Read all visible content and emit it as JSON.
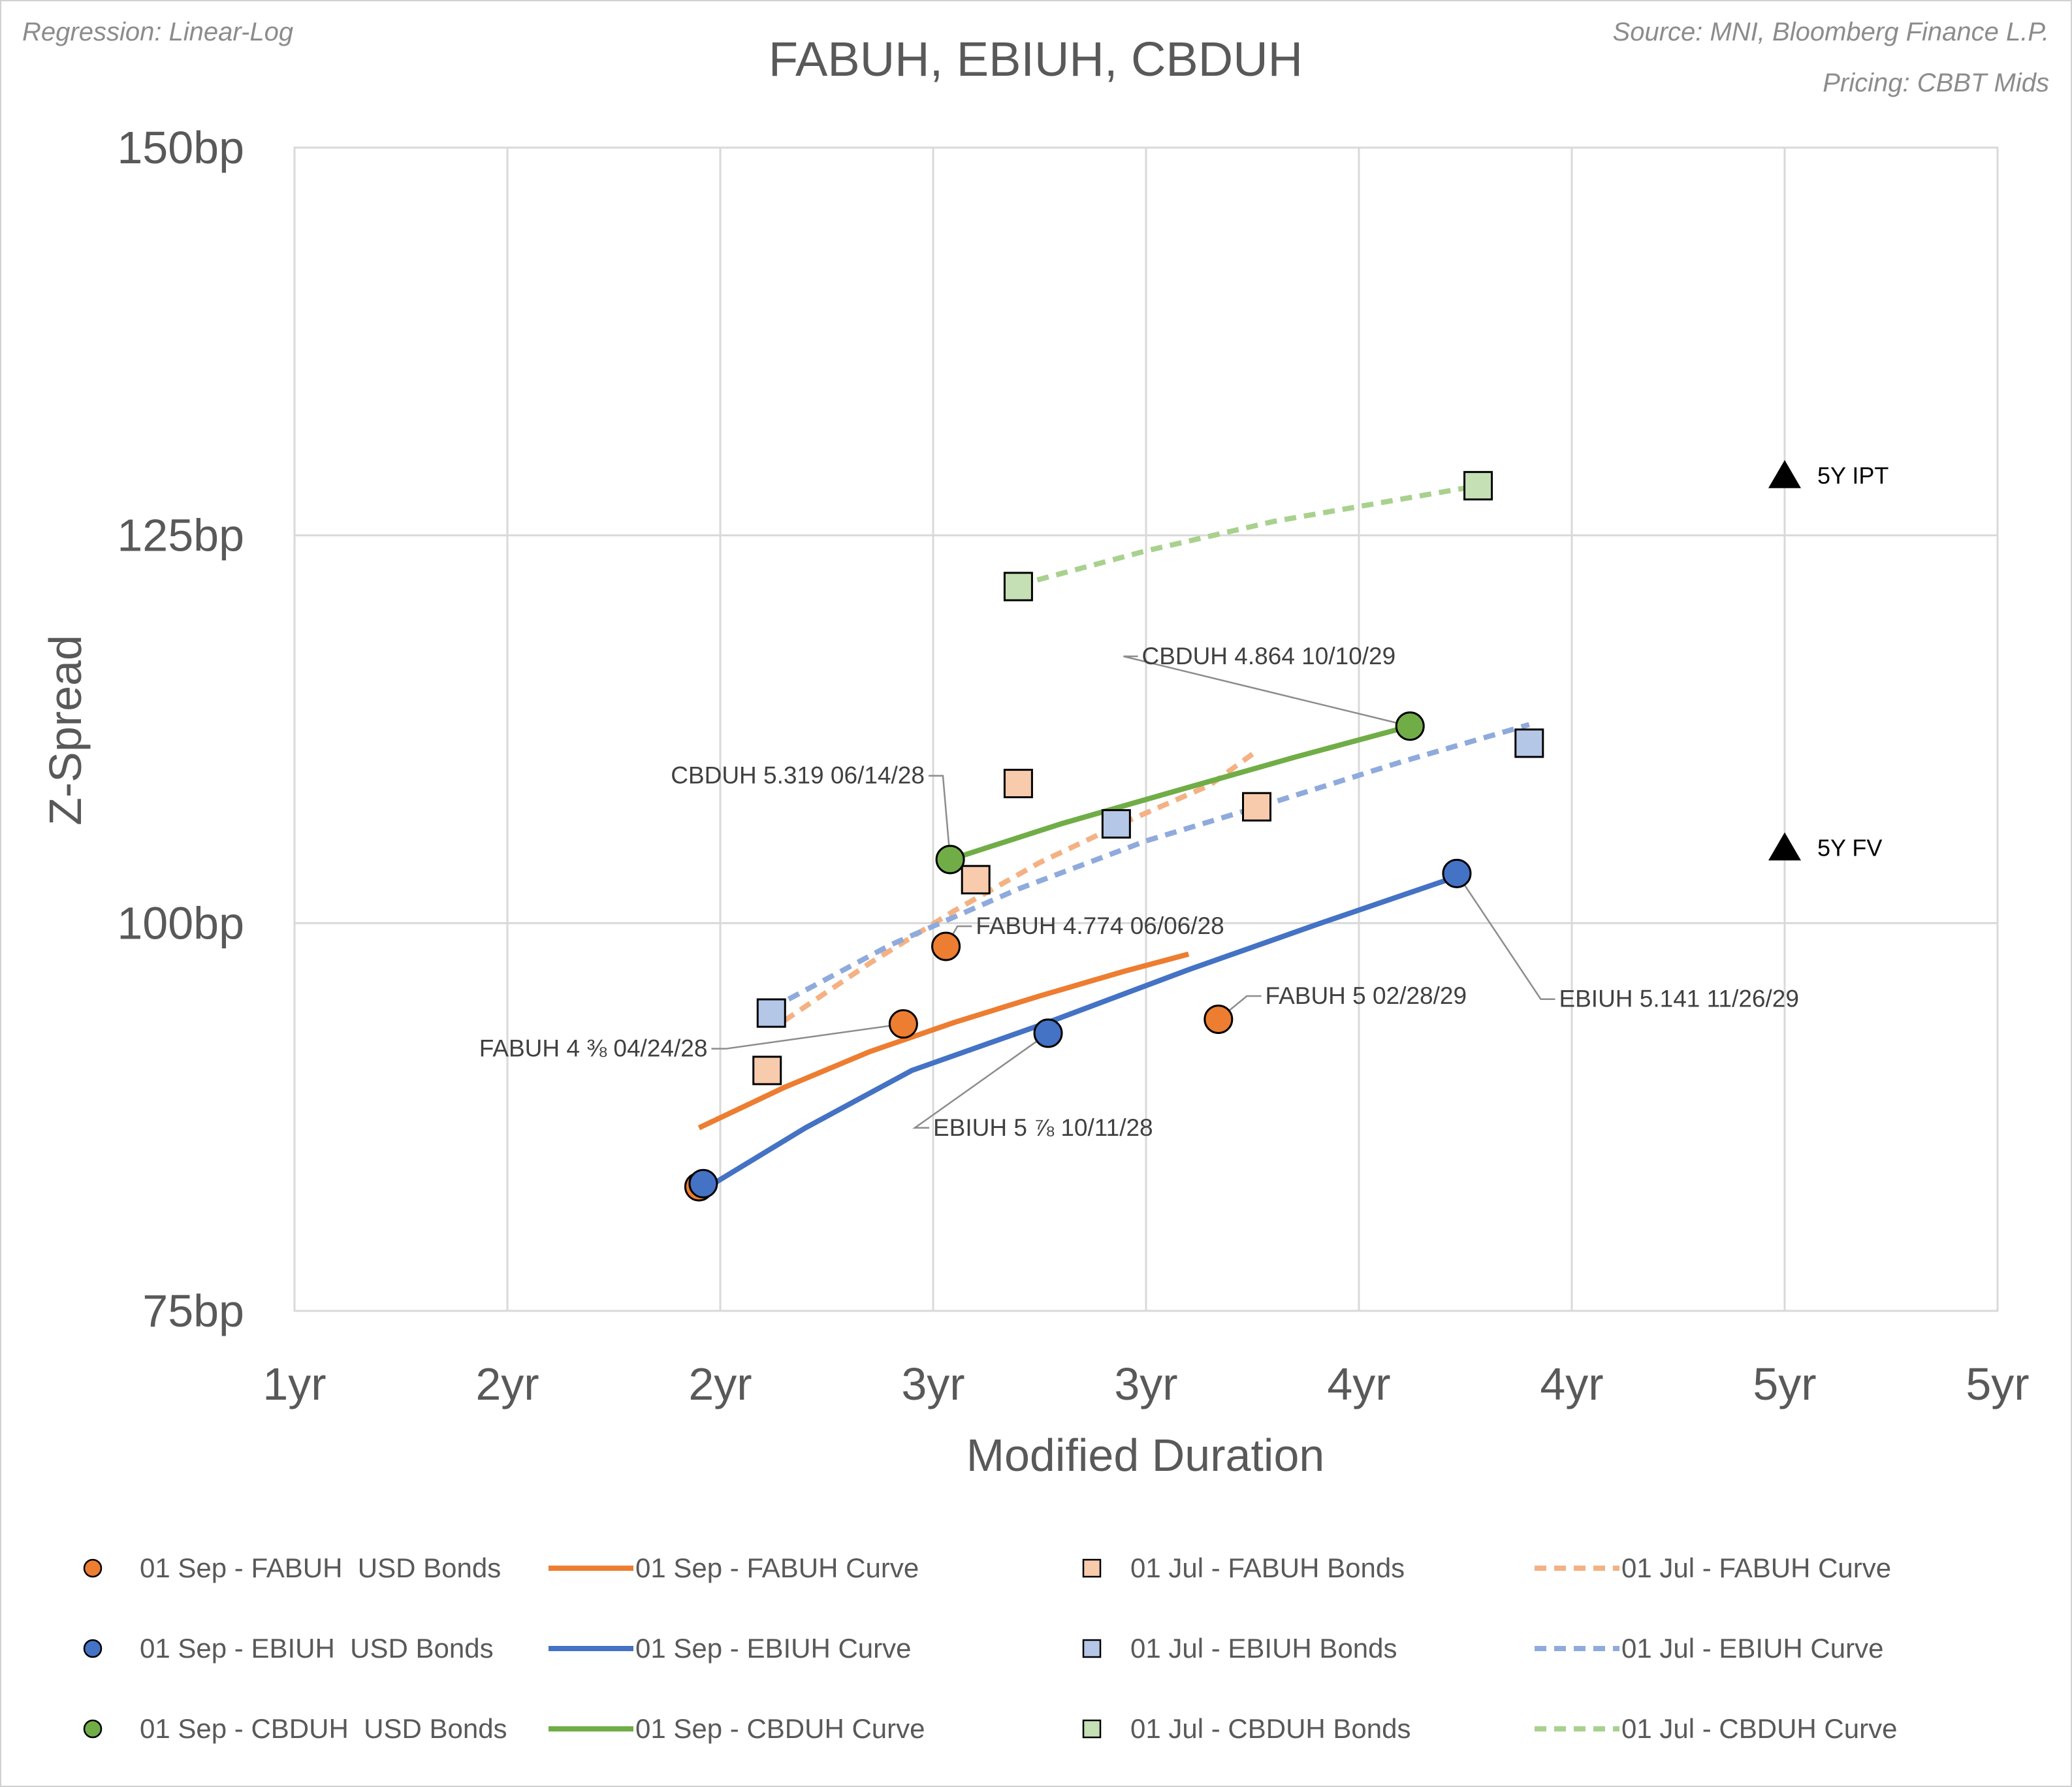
{
  "header": {
    "title": "FABUH, EBIUH, CBDUH",
    "note_left": "Regression: Linear-Log",
    "source": "Source: MNI, Bloomberg Finance L.P.",
    "pricing": "Pricing: CBBT Mids"
  },
  "chart_data": {
    "type": "scatter",
    "title": "FABUH, EBIUH, CBDUH",
    "xlabel": "Modified Duration",
    "ylabel": "Z-Spread",
    "xlim": [
      1.0,
      5.0
    ],
    "ylim": [
      75,
      150
    ],
    "x_ticks": [
      {
        "value": 1.0,
        "label": "1yr"
      },
      {
        "value": 1.5,
        "label": "2yr"
      },
      {
        "value": 2.0,
        "label": "2yr"
      },
      {
        "value": 2.5,
        "label": "3yr"
      },
      {
        "value": 3.0,
        "label": "3yr"
      },
      {
        "value": 3.5,
        "label": "4yr"
      },
      {
        "value": 4.0,
        "label": "4yr"
      },
      {
        "value": 4.5,
        "label": "5yr"
      },
      {
        "value": 5.0,
        "label": "5yr"
      }
    ],
    "y_ticks": [
      {
        "value": 75,
        "label": "75bp"
      },
      {
        "value": 100,
        "label": "100bp"
      },
      {
        "value": 125,
        "label": "125bp"
      },
      {
        "value": 150,
        "label": "150bp"
      }
    ],
    "grid": true,
    "legend_position": "bottom",
    "colors": {
      "fabuh": "#ED7D31",
      "ebiuh": "#4472C4",
      "cbduh": "#70AD47",
      "fabuh_light": "#F8CBAD",
      "ebiuh_light": "#B4C7E7",
      "cbduh_light": "#C5E0B4",
      "fabuh_dash": "#F4B183",
      "ebiuh_dash": "#8FAADC",
      "cbduh_dash": "#A9D18E",
      "marker": "#000000"
    },
    "series": [
      {
        "key": "s_fab",
        "name": "01 Sep - FABUH  USD Bonds",
        "kind": "scatter",
        "marker": "circle",
        "color": "fabuh",
        "points": [
          [
            1.95,
            83.0
          ],
          [
            2.43,
            93.5
          ],
          [
            2.53,
            98.5
          ],
          [
            3.17,
            93.8
          ]
        ]
      },
      {
        "key": "c_fab",
        "name": "01 Sep - FABUH Curve",
        "kind": "line",
        "dash": false,
        "color": "fabuh",
        "points": [
          [
            1.95,
            86.8
          ],
          [
            2.15,
            89.4
          ],
          [
            2.35,
            91.7
          ],
          [
            2.55,
            93.6
          ],
          [
            2.75,
            95.3
          ],
          [
            2.95,
            96.9
          ],
          [
            3.1,
            98.0
          ]
        ]
      },
      {
        "key": "l_fab",
        "name": "01 Jul - FABUH Bonds",
        "kind": "scatter",
        "marker": "square",
        "color": "fabuh_light",
        "points": [
          [
            2.11,
            90.5
          ],
          [
            2.6,
            102.8
          ],
          [
            2.7,
            109.0
          ],
          [
            3.26,
            107.5
          ]
        ]
      },
      {
        "key": "d_fab",
        "name": "01 Jul - FABUH Curve",
        "kind": "line",
        "dash": true,
        "color": "fabuh_dash",
        "points": [
          [
            2.15,
            93.7
          ],
          [
            2.35,
            97.4
          ],
          [
            2.55,
            100.8
          ],
          [
            2.75,
            103.9
          ],
          [
            2.95,
            106.5
          ],
          [
            3.15,
            108.9
          ],
          [
            3.25,
            110.9
          ]
        ]
      },
      {
        "key": "s_ebi",
        "name": "01 Sep - EBIUH  USD Bonds",
        "kind": "scatter",
        "marker": "circle",
        "color": "ebiuh",
        "points": [
          [
            1.96,
            83.2
          ],
          [
            2.77,
            92.9
          ],
          [
            3.73,
            103.2
          ]
        ]
      },
      {
        "key": "c_ebi",
        "name": "01 Sep - EBIUH Curve",
        "kind": "line",
        "dash": false,
        "color": "ebiuh",
        "points": [
          [
            1.96,
            82.8
          ],
          [
            2.2,
            86.8
          ],
          [
            2.45,
            90.5
          ],
          [
            2.77,
            93.6
          ],
          [
            3.1,
            97.0
          ],
          [
            3.4,
            99.9
          ],
          [
            3.73,
            103.0
          ]
        ]
      },
      {
        "key": "l_ebi",
        "name": "01 Jul - EBIUH Bonds",
        "kind": "scatter",
        "marker": "square",
        "color": "ebiuh_light",
        "points": [
          [
            2.12,
            94.2
          ],
          [
            2.93,
            106.4
          ],
          [
            3.9,
            111.6
          ]
        ]
      },
      {
        "key": "d_ebi",
        "name": "01 Jul - EBIUH Curve",
        "kind": "line",
        "dash": true,
        "color": "ebiuh_dash",
        "points": [
          [
            2.12,
            94.5
          ],
          [
            2.4,
            98.6
          ],
          [
            2.7,
            102.2
          ],
          [
            3.0,
            105.3
          ],
          [
            3.3,
            107.8
          ],
          [
            3.6,
            110.4
          ],
          [
            3.9,
            112.8
          ]
        ]
      },
      {
        "key": "s_cbd",
        "name": "01 Sep - CBDUH  USD Bonds",
        "kind": "scatter",
        "marker": "circle",
        "color": "cbduh",
        "points": [
          [
            2.54,
            104.1
          ],
          [
            3.62,
            112.7
          ]
        ]
      },
      {
        "key": "c_cbd",
        "name": "01 Sep - CBDUH Curve",
        "kind": "line",
        "dash": false,
        "color": "cbduh",
        "points": [
          [
            2.54,
            104.1
          ],
          [
            2.8,
            106.4
          ],
          [
            3.08,
            108.6
          ],
          [
            3.35,
            110.7
          ],
          [
            3.62,
            112.7
          ]
        ]
      },
      {
        "key": "l_cbd",
        "name": "01 Jul - CBDUH Bonds",
        "kind": "scatter",
        "marker": "square",
        "color": "cbduh_light",
        "points": [
          [
            2.7,
            121.7
          ],
          [
            3.78,
            128.2
          ]
        ]
      },
      {
        "key": "d_cbd",
        "name": "01 Jul - CBDUH Curve",
        "kind": "line",
        "dash": true,
        "color": "cbduh_dash",
        "points": [
          [
            2.7,
            121.8
          ],
          [
            3.0,
            124.0
          ],
          [
            3.3,
            125.9
          ],
          [
            3.55,
            127.1
          ],
          [
            3.78,
            128.2
          ]
        ]
      }
    ],
    "markers": [
      {
        "label": "5Y IPT",
        "x": 4.5,
        "y": 128.8
      },
      {
        "label": "5Y FV",
        "x": 4.5,
        "y": 104.8
      }
    ],
    "annotations": [
      {
        "text": "CBDUH 4.864 10/10/29",
        "x": 3.62,
        "y": 112.7,
        "label_x": 2.99,
        "label_y": 117.2,
        "anchor": "start"
      },
      {
        "text": "CBDUH 5.319 06/14/28",
        "x": 2.54,
        "y": 104.1,
        "label_x": 2.48,
        "label_y": 109.5,
        "anchor": "end"
      },
      {
        "text": "FABUH 4.774 06/06/28",
        "x": 2.53,
        "y": 98.5,
        "label_x": 2.6,
        "label_y": 99.8,
        "anchor": "start"
      },
      {
        "text": "FABUH 5 02/28/29",
        "x": 3.17,
        "y": 93.8,
        "label_x": 3.28,
        "label_y": 95.3,
        "anchor": "start"
      },
      {
        "text": "FABUH 4 ⅜ 04/24/28",
        "x": 2.43,
        "y": 93.5,
        "label_x": 1.97,
        "label_y": 91.9,
        "anchor": "end"
      },
      {
        "text": "EBIUH 5.141 11/26/29",
        "x": 3.73,
        "y": 103.2,
        "label_x": 3.97,
        "label_y": 95.1,
        "anchor": "start"
      },
      {
        "text": "EBIUH 5 ⅞ 10/11/28",
        "x": 2.77,
        "y": 92.9,
        "label_x": 2.5,
        "label_y": 86.8,
        "anchor": "start"
      }
    ]
  },
  "legend": [
    {
      "series": "s_fab",
      "label": "01 Sep - FABUH  USD Bonds"
    },
    {
      "series": "c_fab",
      "label": "01 Sep - FABUH Curve"
    },
    {
      "series": "l_fab",
      "label": "01 Jul - FABUH Bonds"
    },
    {
      "series": "d_fab",
      "label": "01 Jul - FABUH Curve"
    },
    {
      "series": "s_ebi",
      "label": "01 Sep - EBIUH  USD Bonds"
    },
    {
      "series": "c_ebi",
      "label": "01 Sep - EBIUH Curve"
    },
    {
      "series": "l_ebi",
      "label": "01 Jul - EBIUH Bonds"
    },
    {
      "series": "d_ebi",
      "label": "01 Jul - EBIUH Curve"
    },
    {
      "series": "s_cbd",
      "label": "01 Sep - CBDUH  USD Bonds"
    },
    {
      "series": "c_cbd",
      "label": "01 Sep - CBDUH Curve"
    },
    {
      "series": "l_cbd",
      "label": "01 Jul - CBDUH Bonds"
    },
    {
      "series": "d_cbd",
      "label": "01 Jul - CBDUH Curve"
    }
  ]
}
